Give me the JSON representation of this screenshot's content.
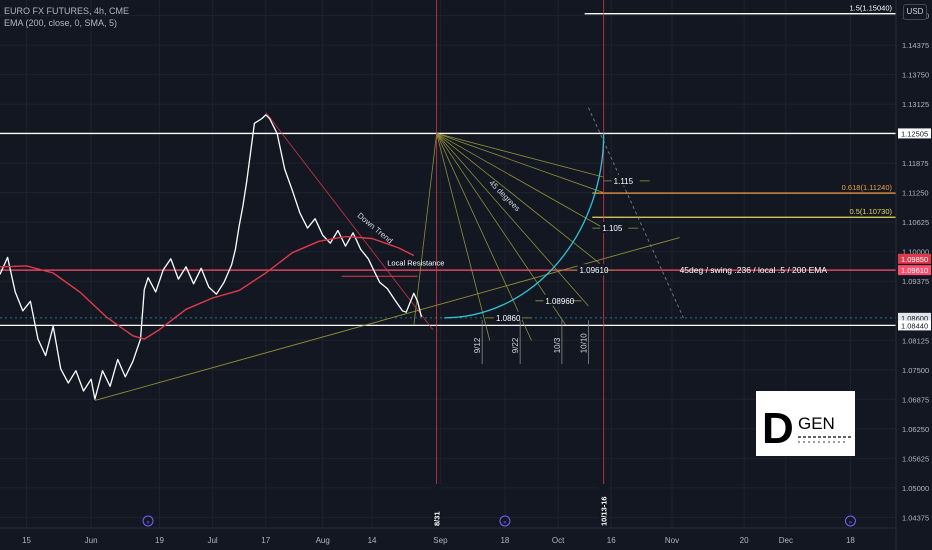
{
  "header": {
    "symbol_line": "EURO FX FUTURES, 4h, CME",
    "indicator_line": "EMA (200, close, 0, SMA, 5)",
    "currency_button": "USD"
  },
  "colors": {
    "background": "#131722",
    "grid": "#1f2330",
    "price": "#ffffff",
    "ema": "#e03a4a",
    "fan": "#9a9a3a",
    "arc": "#2ec4d6",
    "resistance": "#ff4d6d",
    "orange_level": "#f0a040",
    "yellow_level": "#e8d85a",
    "vertical_event": "#e03a4a"
  },
  "logo": {
    "letter": "D",
    "word": "GEN"
  },
  "chart_data": {
    "type": "line",
    "title": "",
    "xlabel": "",
    "ylabel": "",
    "x_ticks": [
      {
        "label": "15",
        "date": "2023-05-15"
      },
      {
        "label": "Jun",
        "date": "2023-06-01"
      },
      {
        "label": "19",
        "date": "2023-06-19"
      },
      {
        "label": "Jul",
        "date": "2023-07-03"
      },
      {
        "label": "17",
        "date": "2023-07-17"
      },
      {
        "label": "Aug",
        "date": "2023-08-01"
      },
      {
        "label": "14",
        "date": "2023-08-14"
      },
      {
        "label": "Sep",
        "date": "2023-09-01"
      },
      {
        "label": "18",
        "date": "2023-09-18"
      },
      {
        "label": "Oct",
        "date": "2023-10-02"
      },
      {
        "label": "16",
        "date": "2023-10-16"
      },
      {
        "label": "Nov",
        "date": "2023-11-01"
      },
      {
        "label": "20",
        "date": "2023-11-20"
      },
      {
        "label": "Dec",
        "date": "2023-12-01"
      },
      {
        "label": "18",
        "date": "2023-12-18"
      }
    ],
    "x_range": [
      "2023-05-08",
      "2023-12-30"
    ],
    "y_ticks": [
      1.15,
      1.14375,
      1.1375,
      1.13125,
      1.11875,
      1.1125,
      1.10625,
      1.1,
      1.09375,
      1.08125,
      1.075,
      1.06875,
      1.0625,
      1.05625,
      1.05,
      1.04375
    ],
    "ylim": [
      1.0415,
      1.1533
    ],
    "series": [
      {
        "name": "",
        "color": "#ffffff",
        "points": [
          [
            "2023-05-08",
            1.0952
          ],
          [
            "2023-05-10",
            1.0988
          ],
          [
            "2023-05-12",
            1.0915
          ],
          [
            "2023-05-14",
            1.0875
          ],
          [
            "2023-05-16",
            1.0895
          ],
          [
            "2023-05-18",
            1.0815
          ],
          [
            "2023-05-20",
            1.078
          ],
          [
            "2023-05-22",
            1.0842
          ],
          [
            "2023-05-24",
            1.0752
          ],
          [
            "2023-05-26",
            1.0722
          ],
          [
            "2023-05-28",
            1.0748
          ],
          [
            "2023-05-30",
            1.0705
          ],
          [
            "2023-06-01",
            1.073
          ],
          [
            "2023-06-02",
            1.0688
          ],
          [
            "2023-06-04",
            1.0748
          ],
          [
            "2023-06-06",
            1.0715
          ],
          [
            "2023-06-08",
            1.0772
          ],
          [
            "2023-06-10",
            1.0735
          ],
          [
            "2023-06-12",
            1.0768
          ],
          [
            "2023-06-14",
            1.0815
          ],
          [
            "2023-06-15",
            1.092
          ],
          [
            "2023-06-16",
            1.0945
          ],
          [
            "2023-06-18",
            1.0915
          ],
          [
            "2023-06-20",
            1.0962
          ],
          [
            "2023-06-22",
            1.0985
          ],
          [
            "2023-06-24",
            1.0942
          ],
          [
            "2023-06-26",
            1.0968
          ],
          [
            "2023-06-28",
            1.0932
          ],
          [
            "2023-06-30",
            1.0965
          ],
          [
            "2023-07-02",
            1.0925
          ],
          [
            "2023-07-04",
            1.091
          ],
          [
            "2023-07-06",
            1.0935
          ],
          [
            "2023-07-08",
            1.0972
          ],
          [
            "2023-07-09",
            1.1005
          ],
          [
            "2023-07-10",
            1.1055
          ],
          [
            "2023-07-11",
            1.1098
          ],
          [
            "2023-07-12",
            1.115
          ],
          [
            "2023-07-14",
            1.1272
          ],
          [
            "2023-07-16",
            1.1282
          ],
          [
            "2023-07-17",
            1.129
          ],
          [
            "2023-07-18",
            1.1282
          ],
          [
            "2023-07-20",
            1.125
          ],
          [
            "2023-07-22",
            1.1175
          ],
          [
            "2023-07-24",
            1.113
          ],
          [
            "2023-07-26",
            1.1082
          ],
          [
            "2023-07-28",
            1.105
          ],
          [
            "2023-07-30",
            1.107
          ],
          [
            "2023-08-01",
            1.1035
          ],
          [
            "2023-08-03",
            1.1018
          ],
          [
            "2023-08-05",
            1.1045
          ],
          [
            "2023-08-07",
            1.1012
          ],
          [
            "2023-08-09",
            1.104
          ],
          [
            "2023-08-11",
            1.1005
          ],
          [
            "2023-08-13",
            1.0985
          ],
          [
            "2023-08-14",
            1.0968
          ],
          [
            "2023-08-16",
            1.0935
          ],
          [
            "2023-08-18",
            1.0922
          ],
          [
            "2023-08-20",
            1.0898
          ],
          [
            "2023-08-22",
            1.0875
          ],
          [
            "2023-08-23",
            1.0872
          ],
          [
            "2023-08-25",
            1.0912
          ],
          [
            "2023-08-26",
            1.0895
          ],
          [
            "2023-08-27",
            1.0862
          ]
        ]
      },
      {
        "name": "",
        "color": "#e03a4a",
        "points": [
          [
            "2023-05-08",
            1.0968
          ],
          [
            "2023-05-15",
            1.097
          ],
          [
            "2023-05-22",
            1.0955
          ],
          [
            "2023-05-29",
            1.0915
          ],
          [
            "2023-06-05",
            1.0862
          ],
          [
            "2023-06-12",
            1.0822
          ],
          [
            "2023-06-15",
            1.0815
          ],
          [
            "2023-06-19",
            1.0835
          ],
          [
            "2023-06-26",
            1.0878
          ],
          [
            "2023-07-03",
            1.0902
          ],
          [
            "2023-07-10",
            1.0918
          ],
          [
            "2023-07-17",
            1.0955
          ],
          [
            "2023-07-24",
            1.0998
          ],
          [
            "2023-07-31",
            1.1022
          ],
          [
            "2023-08-07",
            1.1032
          ],
          [
            "2023-08-14",
            1.1028
          ],
          [
            "2023-08-21",
            1.1008
          ],
          [
            "2023-08-25",
            1.0992
          ]
        ]
      }
    ],
    "horizontal_levels": [
      {
        "value": 1.1504,
        "label": "1.5(1.15040)",
        "color": "#ffffff",
        "from": "2023-10-09"
      },
      {
        "value": 1.12505,
        "label": "",
        "color": "#ffffff",
        "from": "2023-05-08"
      },
      {
        "value": 1.1124,
        "label": "0.618(1.11240)",
        "color": "#f0a040",
        "from": "2023-10-11"
      },
      {
        "value": 1.1073,
        "label": "0.5(1.10730)",
        "color": "#e8d85a",
        "from": "2023-10-11"
      },
      {
        "value": 1.0961,
        "label": "",
        "color": "#ff4d6d",
        "from": "2023-05-08"
      },
      {
        "value": 1.0844,
        "label": "",
        "color": "#ffffff",
        "from": "2023-05-08"
      },
      {
        "value": 1.086,
        "label": "",
        "color": "#2ec4d6",
        "from": "2023-05-08"
      }
    ],
    "price_tags": [
      {
        "value": 1.12505,
        "label": "1.12505",
        "bg": "#ffffff",
        "fg": "#131722"
      },
      {
        "value": 1.0985,
        "label": "1.09850",
        "bg": "#e03a4a",
        "fg": "#ffffff"
      },
      {
        "value": 1.0961,
        "label": "1.09610",
        "bg": "#ff4d6d",
        "fg": "#ffffff"
      },
      {
        "value": 1.086,
        "label": "1.08600",
        "bg": "#dfe6ea",
        "fg": "#131722"
      },
      {
        "value": 1.0844,
        "label": "1.08440",
        "bg": "#ffffff",
        "fg": "#131722"
      }
    ],
    "vertical_lines": [
      {
        "date": "2023-08-31",
        "label": "8/31",
        "color": "#e03a4a"
      },
      {
        "date": "2023-10-14",
        "label": "10/13-16",
        "color": "#e03a4a"
      }
    ],
    "fan": {
      "origin": {
        "date": "2023-08-31",
        "value": 1.12505
      },
      "targets": [
        {
          "date": "2023-08-25",
          "value": 1.0845
        },
        {
          "date": "2023-09-14",
          "value": 1.0812
        },
        {
          "date": "2023-09-25",
          "value": 1.0812
        },
        {
          "date": "2023-10-04",
          "value": 1.0845
        },
        {
          "date": "2023-10-10",
          "value": 1.0885
        },
        {
          "date": "2023-10-13",
          "value": 1.0975
        },
        {
          "date": "2023-10-14",
          "value": 1.105
        },
        {
          "date": "2023-10-14",
          "value": 1.1125
        },
        {
          "date": "2023-10-14",
          "value": 1.1158
        }
      ],
      "label": "45 degrees"
    },
    "arc": {
      "label_points": [
        {
          "date": "2023-09-13",
          "value": 1.086,
          "label": "1.0860"
        },
        {
          "date": "2023-09-26",
          "value": 1.0896,
          "label": "1.08960"
        },
        {
          "date": "2023-10-05",
          "value": 1.0961,
          "label": "1.09610"
        },
        {
          "date": "2023-10-11",
          "value": 1.105,
          "label": "1.105"
        },
        {
          "date": "2023-10-14",
          "value": 1.115,
          "label": "1.115"
        }
      ]
    },
    "date_markers": [
      {
        "date": "2023-09-12",
        "label": "9/12"
      },
      {
        "date": "2023-09-22",
        "label": "9/22"
      },
      {
        "date": "2023-10-03",
        "label": "10/3"
      },
      {
        "date": "2023-10-10",
        "label": "10/10"
      }
    ],
    "trendlines": [
      {
        "name": "Down Trend",
        "label": "Down Trend",
        "from": {
          "date": "2023-07-17",
          "value": 1.1295
        },
        "to": {
          "date": "2023-08-30",
          "value": 1.0835
        },
        "color": "#e03a4a"
      },
      {
        "name": "uptrend-support",
        "label": "",
        "from": {
          "date": "2023-06-02",
          "value": 1.0685
        },
        "to": {
          "date": "2023-11-03",
          "value": 1.103
        },
        "color": "#9a9a3a"
      },
      {
        "name": "projection",
        "label": "",
        "from": {
          "date": "2023-10-10",
          "value": 1.1305
        },
        "to": {
          "date": "2023-11-04",
          "value": 1.086
        },
        "color": "#888888"
      }
    ],
    "annotations": [
      {
        "label": "Local Resistance",
        "date": "2023-08-18",
        "value": 1.0967
      },
      {
        "label": "45deg / swing .236 / local .5 / 200 EMA",
        "date": "2023-11-03",
        "value": 1.0961
      }
    ],
    "local_resistance_box": {
      "from": "2023-08-06",
      "to": "2023-08-26",
      "value": 1.0948
    },
    "event_icons": [
      "2023-06-16",
      "2023-09-18",
      "2023-12-18"
    ]
  }
}
